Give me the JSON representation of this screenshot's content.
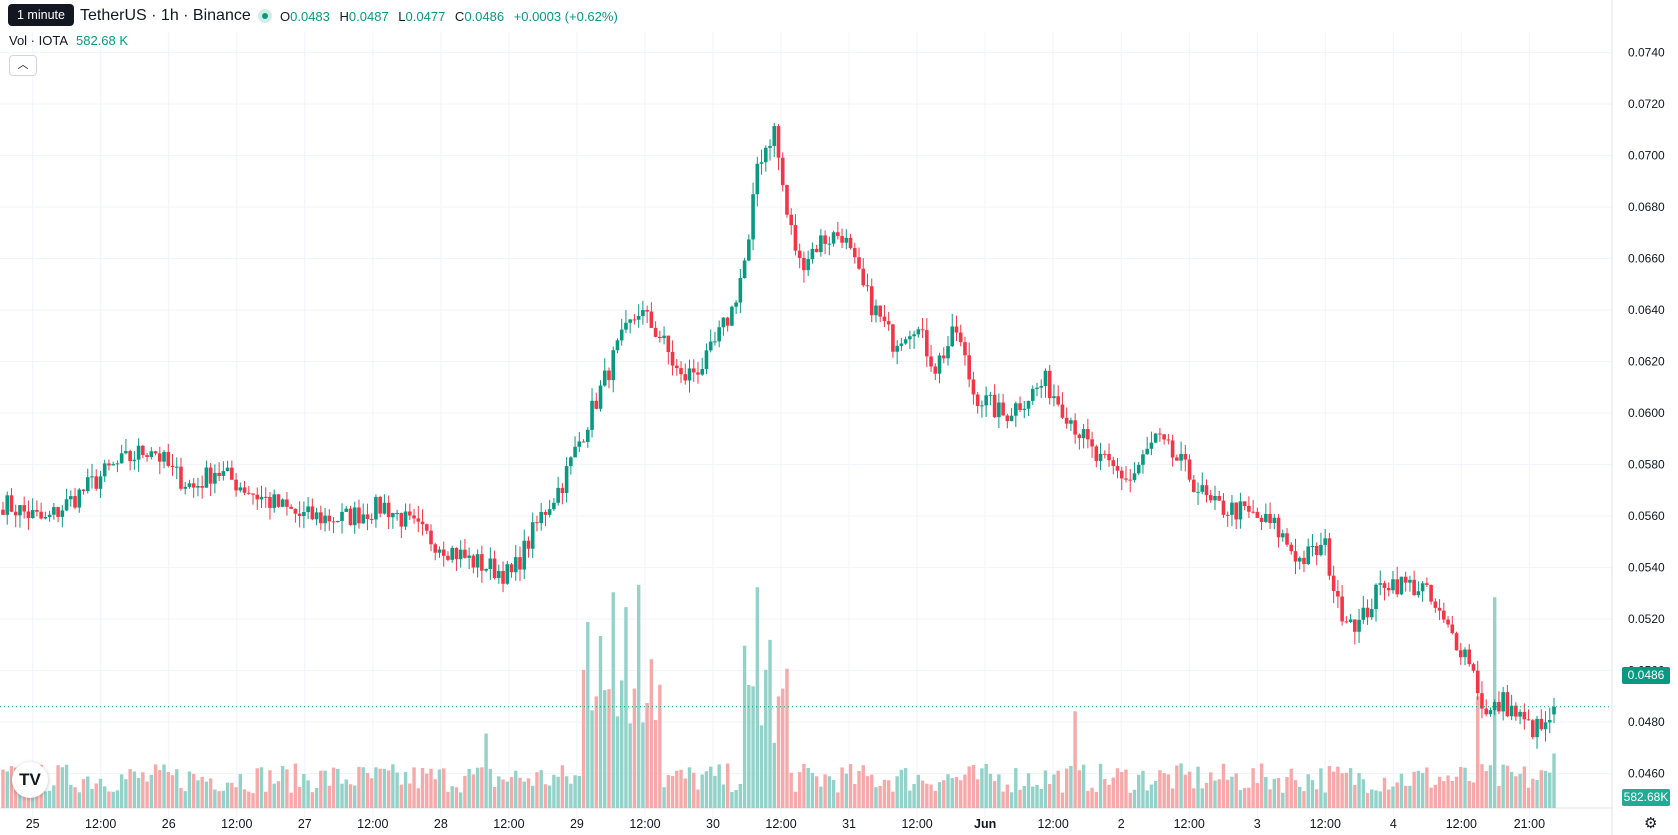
{
  "header": {
    "tooltip": "1 minute",
    "symbol_title": "TetherUS · 1h · Binance",
    "o_label": "O",
    "o_value": "0.0483",
    "h_label": "H",
    "h_value": "0.0487",
    "l_label": "L",
    "l_value": "0.0477",
    "c_label": "C",
    "c_value": "0.0486",
    "change": "+0.0003 (+0.62%)"
  },
  "volume": {
    "label": "Vol · IOTA",
    "value": "582.68 K"
  },
  "collapse_icon": "chevron-up-icon",
  "logo_icon": "tradingview-logo-icon",
  "settings_icon": "gear-icon",
  "colors": {
    "up": "#089981",
    "down": "#f23645",
    "vol_up": "#92d2c9",
    "vol_down": "#f7a9a9",
    "grid": "#f0f3fa"
  },
  "chart_data": {
    "type": "candlestick",
    "interval": "1h",
    "ylim": [
      0.0442,
      0.0748
    ],
    "y_ticks": [
      "0.0740",
      "0.0720",
      "0.0700",
      "0.0680",
      "0.0660",
      "0.0640",
      "0.0620",
      "0.0600",
      "0.0580",
      "0.0560",
      "0.0540",
      "0.0520",
      "0.0500",
      "0.0480",
      "0.0460"
    ],
    "x_tick_labels": [
      "25",
      "12:00",
      "26",
      "12:00",
      "27",
      "12:00",
      "28",
      "12:00",
      "29",
      "12:00",
      "30",
      "12:00",
      "31",
      "12:00",
      "Jun",
      "12:00",
      "2",
      "12:00",
      "3",
      "12:00",
      "4",
      "12:00",
      "21:00"
    ],
    "last_price": "0.0486",
    "last_volume": "582.68K",
    "key_closes": [
      [
        0,
        0.0565
      ],
      [
        10,
        0.0558
      ],
      [
        25,
        0.0578
      ],
      [
        35,
        0.0587
      ],
      [
        40,
        0.0577
      ],
      [
        45,
        0.0571
      ],
      [
        50,
        0.0578
      ],
      [
        60,
        0.0568
      ],
      [
        70,
        0.056
      ],
      [
        80,
        0.0559
      ],
      [
        90,
        0.0564
      ],
      [
        100,
        0.0552
      ],
      [
        110,
        0.0543
      ],
      [
        120,
        0.0537
      ],
      [
        127,
        0.056
      ],
      [
        132,
        0.0573
      ],
      [
        138,
        0.0597
      ],
      [
        145,
        0.0625
      ],
      [
        150,
        0.064
      ],
      [
        155,
        0.063
      ],
      [
        160,
        0.0613
      ],
      [
        166,
        0.062
      ],
      [
        172,
        0.064
      ],
      [
        176,
        0.0665
      ],
      [
        178,
        0.0697
      ],
      [
        182,
        0.071
      ],
      [
        185,
        0.0677
      ],
      [
        188,
        0.0658
      ],
      [
        193,
        0.0667
      ],
      [
        198,
        0.067
      ],
      [
        203,
        0.0648
      ],
      [
        210,
        0.0628
      ],
      [
        215,
        0.0635
      ],
      [
        220,
        0.0618
      ],
      [
        225,
        0.0632
      ],
      [
        229,
        0.0608
      ],
      [
        236,
        0.0599
      ],
      [
        246,
        0.0612
      ],
      [
        252,
        0.0598
      ],
      [
        258,
        0.0582
      ],
      [
        266,
        0.0574
      ],
      [
        272,
        0.059
      ],
      [
        278,
        0.058
      ],
      [
        285,
        0.0564
      ],
      [
        292,
        0.0562
      ],
      [
        300,
        0.0556
      ],
      [
        306,
        0.0543
      ],
      [
        312,
        0.0548
      ],
      [
        315,
        0.0525
      ],
      [
        320,
        0.0518
      ],
      [
        326,
        0.0535
      ],
      [
        335,
        0.0532
      ],
      [
        340,
        0.0518
      ],
      [
        346,
        0.0505
      ],
      [
        350,
        0.0482
      ],
      [
        354,
        0.0488
      ],
      [
        360,
        0.0478
      ],
      [
        364,
        0.0477
      ],
      [
        366,
        0.0486
      ]
    ],
    "volume_highlights": [
      [
        114,
        0.3
      ],
      [
        138,
        0.75
      ],
      [
        144,
        0.87
      ],
      [
        147,
        0.81
      ],
      [
        150,
        0.9
      ],
      [
        153,
        0.6
      ],
      [
        178,
        0.89
      ],
      [
        183,
        0.45
      ],
      [
        253,
        0.39
      ],
      [
        348,
        0.45
      ],
      [
        352,
        0.85
      ],
      [
        366,
        0.22
      ]
    ]
  }
}
